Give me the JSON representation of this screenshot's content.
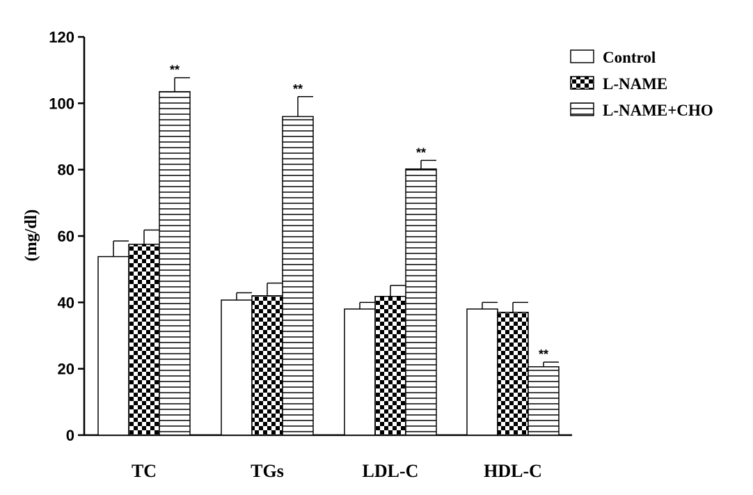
{
  "chart_data": {
    "type": "bar",
    "title": "",
    "xlabel": "",
    "ylabel": "(mg/dl)",
    "ylim": [
      0,
      120
    ],
    "yticks": [
      0,
      20,
      40,
      60,
      80,
      100,
      120
    ],
    "categories": [
      "TC",
      "TGs",
      "LDL-C",
      "HDL-C"
    ],
    "series": [
      {
        "name": "Control",
        "pattern": "none",
        "values": [
          53.8,
          40.7,
          38.0,
          38.0
        ],
        "errors": [
          4.7,
          2.2,
          2.0,
          2.0
        ],
        "annotations": [
          "",
          "",
          "",
          ""
        ]
      },
      {
        "name": "L-NAME",
        "pattern": "checker",
        "values": [
          57.5,
          42.0,
          41.8,
          37.0
        ],
        "errors": [
          4.3,
          3.8,
          3.3,
          3.0
        ],
        "annotations": [
          "",
          "",
          "",
          ""
        ]
      },
      {
        "name": "L-NAME+CHO",
        "pattern": "horizontal-lines",
        "values": [
          103.5,
          96.0,
          80.2,
          20.6
        ],
        "errors": [
          4.2,
          6.0,
          2.6,
          1.4
        ],
        "annotations": [
          "**",
          "**",
          "**",
          "**"
        ]
      }
    ],
    "grid": false,
    "legend_position": "top-right",
    "colors": {
      "bar_fill": "#ffffff",
      "stroke": "#000000"
    }
  }
}
